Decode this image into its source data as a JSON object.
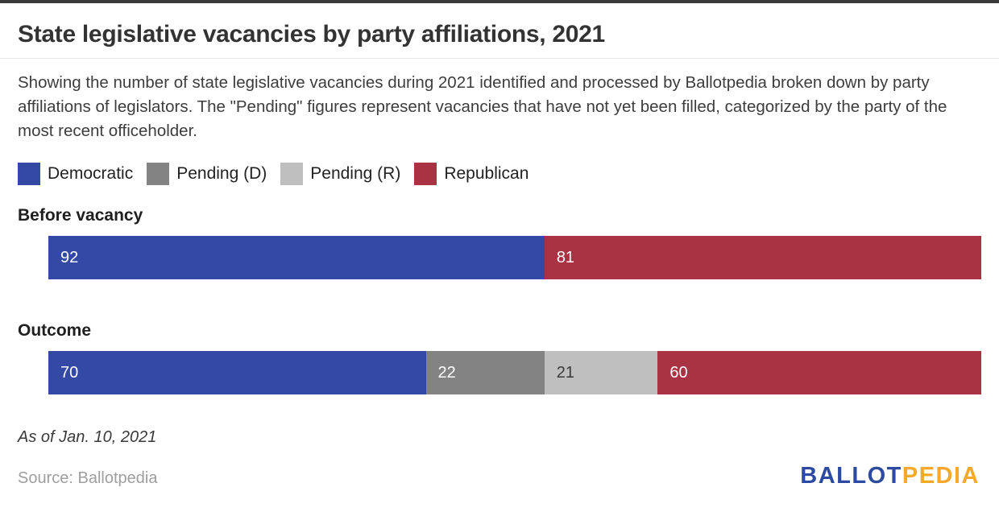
{
  "page": {
    "title": "State legislative vacancies by party affiliations, 2021",
    "subtitle": "Showing the number of state legislative vacancies during 2021 identified and processed by Ballotpedia broken down by party affiliations of legislators. The \"Pending\" figures represent vacancies that have not yet been filled, categorized by the party of the most recent officeholder.",
    "as_of": "As of Jan. 10, 2021",
    "source": "Source: Ballotpedia"
  },
  "logo": {
    "part1": "BALLOT",
    "part2": "PEDIA",
    "part1_color": "#2c4ba0",
    "part2_color": "#f5a82a"
  },
  "colors": {
    "top_border": "#3a3a3a",
    "democratic": "#3448a5",
    "pending_d": "#838383",
    "pending_r": "#bfbfbf",
    "republican": "#aa3343"
  },
  "chart_data": {
    "type": "bar",
    "orientation": "horizontal",
    "stacked": true,
    "title": "State legislative vacancies by party affiliations, 2021",
    "categories": [
      "Before vacancy",
      "Outcome"
    ],
    "total_per_bar": 173,
    "series": [
      {
        "name": "Democratic",
        "color": "#3448a5",
        "text_color": "#ffffff",
        "values": [
          92,
          70
        ]
      },
      {
        "name": "Pending (D)",
        "color": "#838383",
        "text_color": "#ffffff",
        "values": [
          0,
          22
        ]
      },
      {
        "name": "Pending (R)",
        "color": "#bfbfbf",
        "text_color": "#3b3b3b",
        "values": [
          0,
          21
        ]
      },
      {
        "name": "Republican",
        "color": "#aa3343",
        "text_color": "#ffffff",
        "values": [
          81,
          60
        ]
      }
    ],
    "value_labels": "inside-left",
    "legend_position": "top",
    "axes_visible": false,
    "grid": false
  }
}
